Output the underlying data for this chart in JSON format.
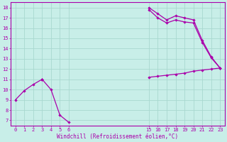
{
  "bg_color": "#c8eee8",
  "grid_color": "#a8d8d0",
  "line_color": "#aa00aa",
  "xlabel": "Windchill (Refroidissement éolien,°C)",
  "xlim": [
    -0.5,
    23.5
  ],
  "ylim": [
    6.5,
    18.5
  ],
  "yticks": [
    7,
    8,
    9,
    10,
    11,
    12,
    13,
    14,
    15,
    16,
    17,
    18
  ],
  "xticks_left": [
    0,
    1,
    2,
    3,
    4,
    5,
    6
  ],
  "xticks_right": [
    15,
    16,
    17,
    18,
    19,
    20,
    21,
    22,
    23
  ],
  "series": [
    {
      "x": [
        0,
        1,
        2,
        3,
        15,
        16,
        17,
        18,
        19,
        20,
        21,
        22,
        23
      ],
      "y": [
        9.0,
        9.9,
        10.5,
        11.0,
        11.2,
        11.3,
        11.4,
        11.5,
        11.6,
        11.8,
        11.9,
        12.0,
        12.1
      ]
    },
    {
      "x": [
        3,
        4,
        5,
        6
      ],
      "y": [
        11.0,
        10.0,
        7.5,
        6.8
      ]
    },
    {
      "x": [
        3,
        15,
        16,
        17,
        18,
        19,
        20,
        21,
        22,
        23
      ],
      "y": [
        11.0,
        18.0,
        17.4,
        16.8,
        17.2,
        17.0,
        16.8,
        14.8,
        13.2,
        12.1
      ]
    },
    {
      "x": [
        3,
        15,
        16,
        17,
        18,
        19,
        20,
        21,
        22,
        23
      ],
      "y": [
        11.0,
        17.8,
        17.0,
        16.5,
        16.8,
        16.6,
        16.5,
        14.6,
        13.1,
        12.1
      ]
    }
  ]
}
